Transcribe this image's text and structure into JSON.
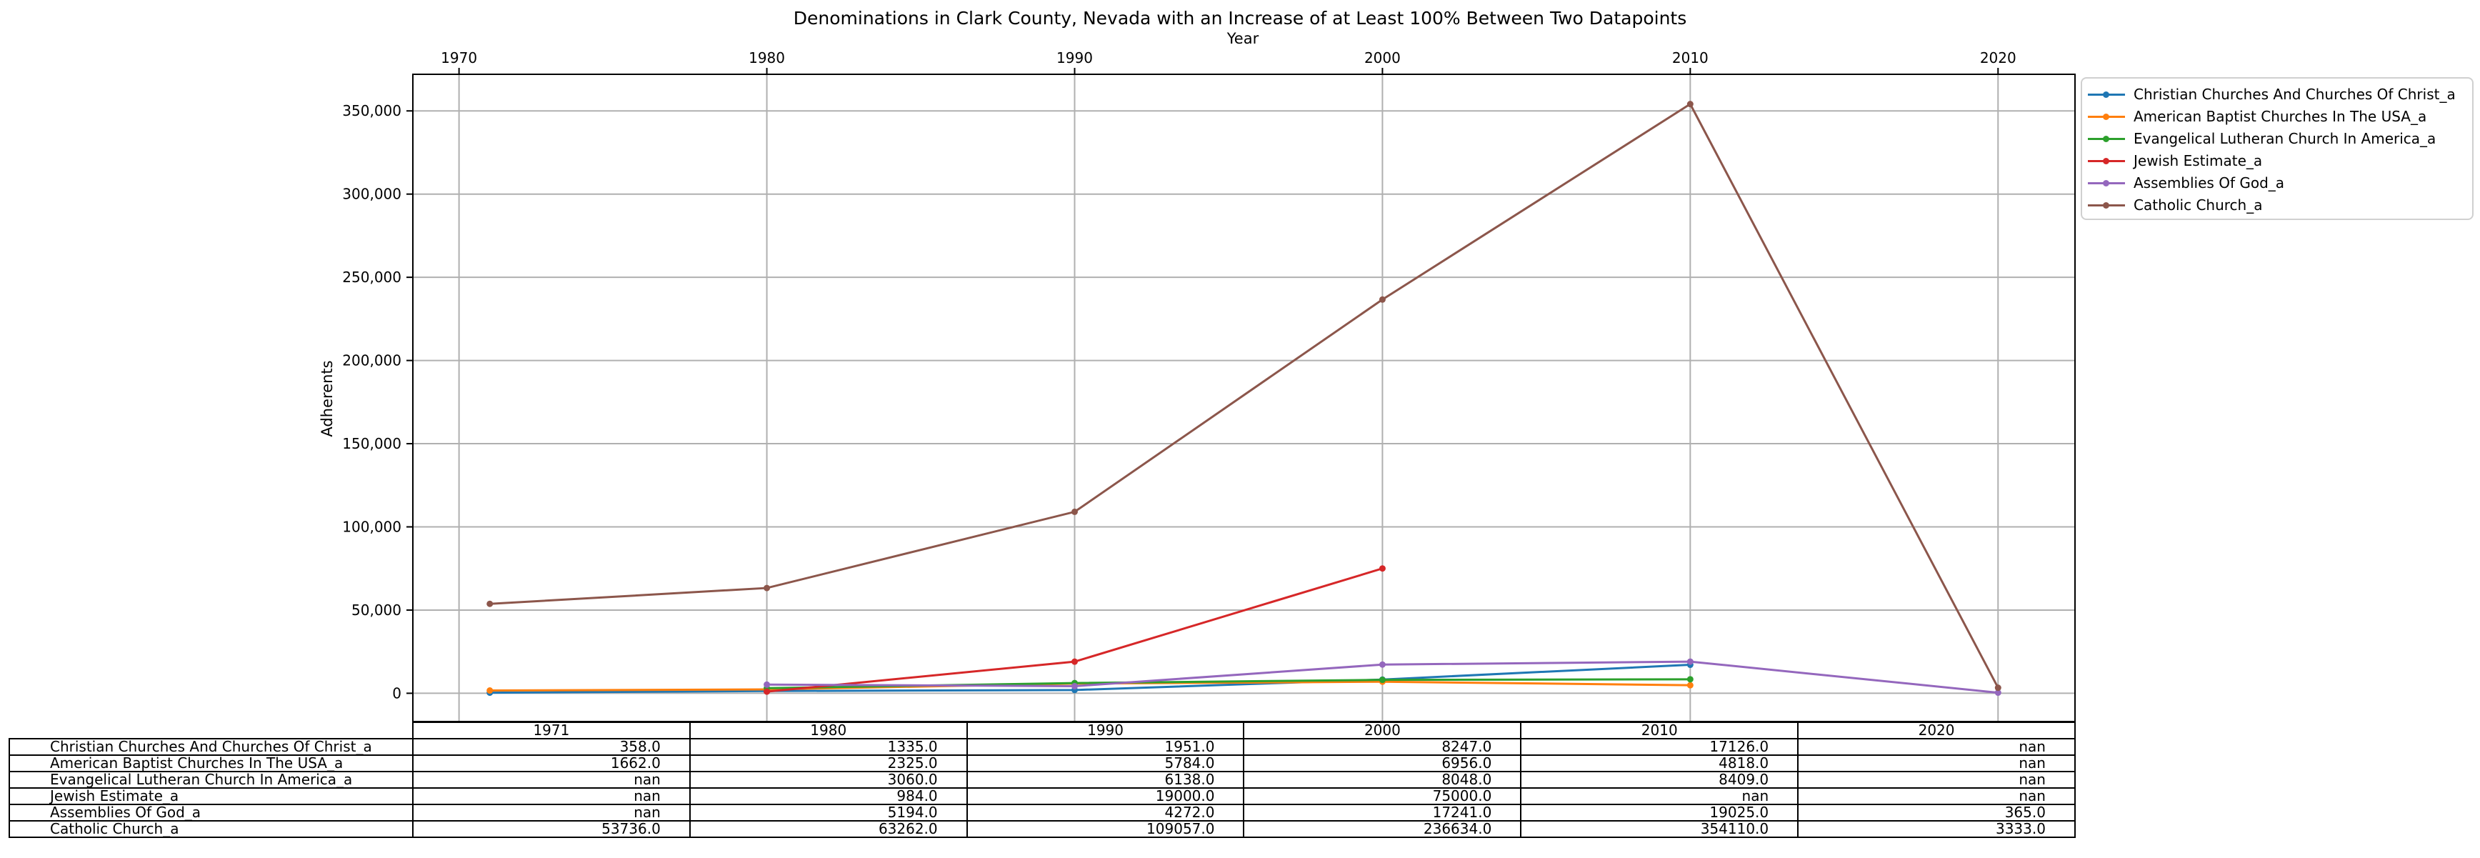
{
  "chart_data": {
    "type": "line",
    "title": "Denominations in Clark County, Nevada with an Increase of at Least 100% Between Two Datapoints",
    "xlabel": "Year",
    "ylabel": "Adherents",
    "x_ticks": [
      "1970",
      "1980",
      "1990",
      "2000",
      "2010",
      "2020"
    ],
    "y_ticks": [
      "0",
      "50,000",
      "100,000",
      "150,000",
      "200,000",
      "250,000",
      "300,000",
      "350,000"
    ],
    "xlim": [
      1968.5,
      2022.5
    ],
    "ylim": [
      -17000,
      372000
    ],
    "grid": true,
    "legend_position": "outside-top-right",
    "x": [
      1971,
      1980,
      1990,
      2000,
      2010,
      2020
    ],
    "series": [
      {
        "name": "Christian Churches And Churches Of Christ_a",
        "color": "#1f77b4",
        "values": [
          358.0,
          1335.0,
          1951.0,
          8247.0,
          17126.0,
          null
        ]
      },
      {
        "name": "American Baptist Churches In The USA_a",
        "color": "#ff7f0e",
        "values": [
          1662.0,
          2325.0,
          5784.0,
          6956.0,
          4818.0,
          null
        ]
      },
      {
        "name": "Evangelical Lutheran Church In America_a",
        "color": "#2ca02c",
        "values": [
          null,
          3060.0,
          6138.0,
          8048.0,
          8409.0,
          null
        ]
      },
      {
        "name": "Jewish Estimate_a",
        "color": "#d62728",
        "values": [
          null,
          984.0,
          19000.0,
          75000.0,
          null,
          null
        ]
      },
      {
        "name": "Assemblies Of God_a",
        "color": "#9467bd",
        "values": [
          null,
          5194.0,
          4272.0,
          17241.0,
          19025.0,
          365.0
        ]
      },
      {
        "name": "Catholic Church_a",
        "color": "#8c564b",
        "values": [
          53736.0,
          63262.0,
          109057.0,
          236634.0,
          354110.0,
          3333.0
        ]
      }
    ],
    "table": {
      "columns": [
        "1971",
        "1980",
        "1990",
        "2000",
        "2010",
        "2020"
      ],
      "rows": [
        {
          "label": "Christian Churches And Churches Of Christ_a",
          "cells": [
            "358.0",
            "1335.0",
            "1951.0",
            "8247.0",
            "17126.0",
            "nan"
          ]
        },
        {
          "label": "American Baptist Churches In The USA_a",
          "cells": [
            "1662.0",
            "2325.0",
            "5784.0",
            "6956.0",
            "4818.0",
            "nan"
          ]
        },
        {
          "label": "Evangelical Lutheran Church In America_a",
          "cells": [
            "nan",
            "3060.0",
            "6138.0",
            "8048.0",
            "8409.0",
            "nan"
          ]
        },
        {
          "label": "Jewish Estimate_a",
          "cells": [
            "nan",
            "984.0",
            "19000.0",
            "75000.0",
            "nan",
            "nan"
          ]
        },
        {
          "label": "Assemblies Of God_a",
          "cells": [
            "nan",
            "5194.0",
            "4272.0",
            "17241.0",
            "19025.0",
            "365.0"
          ]
        },
        {
          "label": "Catholic Church_a",
          "cells": [
            "53736.0",
            "63262.0",
            "109057.0",
            "236634.0",
            "354110.0",
            "3333.0"
          ]
        }
      ]
    }
  }
}
